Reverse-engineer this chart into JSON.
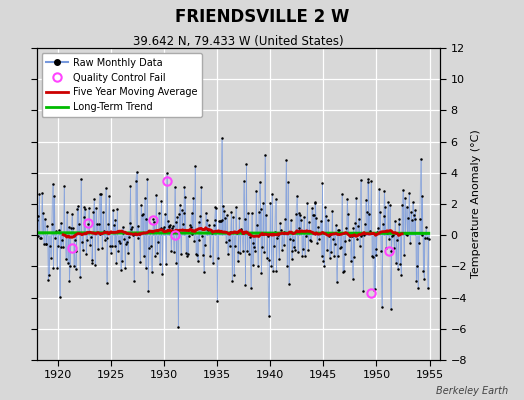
{
  "title": "FRIENDSVILLE 2 W",
  "subtitle": "39.642 N, 79.433 W (United States)",
  "ylabel": "Temperature Anomaly (°C)",
  "watermark": "Berkeley Earth",
  "xlim": [
    1918.0,
    1956.0
  ],
  "ylim": [
    -8,
    12
  ],
  "yticks": [
    -8,
    -6,
    -4,
    -2,
    0,
    2,
    4,
    6,
    8,
    10,
    12
  ],
  "xticks": [
    1920,
    1925,
    1930,
    1935,
    1940,
    1945,
    1950,
    1955
  ],
  "bg_color": "#d8d8d8",
  "plot_bg": "#d8d8d8",
  "grid_color": "#ffffff",
  "raw_line_color": "#7799dd",
  "raw_dot_color": "#000000",
  "ma_color": "#cc0000",
  "trend_color": "#00bb00",
  "qc_color": "#ff44ff",
  "seed": 42,
  "n_years": 37,
  "start_year": 1918,
  "months_per_year": 12
}
